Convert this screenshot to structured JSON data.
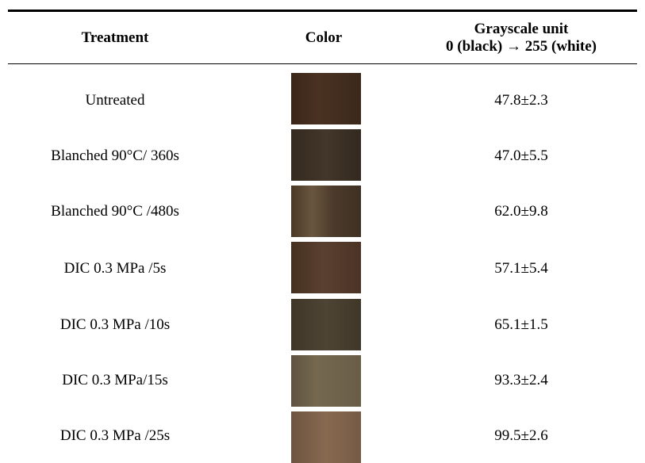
{
  "table": {
    "columns": [
      "Treatment",
      "Color",
      {
        "title": "Grayscale unit",
        "subtitle": "0 (black) → 255 (white)"
      }
    ],
    "rows": [
      [
        "Untreated",
        "47.8±2.3"
      ],
      [
        "Blanched 90°C/ 360s",
        "47.0±5.5"
      ],
      [
        "Blanched 90°C /480s",
        "62.0±9.8"
      ],
      [
        "DIC 0.3 MPa /5s",
        "57.1±5.4"
      ],
      [
        "DIC 0.3 MPa /10s",
        "65.1±1.5"
      ],
      [
        "DIC 0.3 MPa/15s",
        "93.3±2.4"
      ],
      [
        "DIC 0.3 MPa /25s",
        "99.5±2.6"
      ]
    ]
  }
}
